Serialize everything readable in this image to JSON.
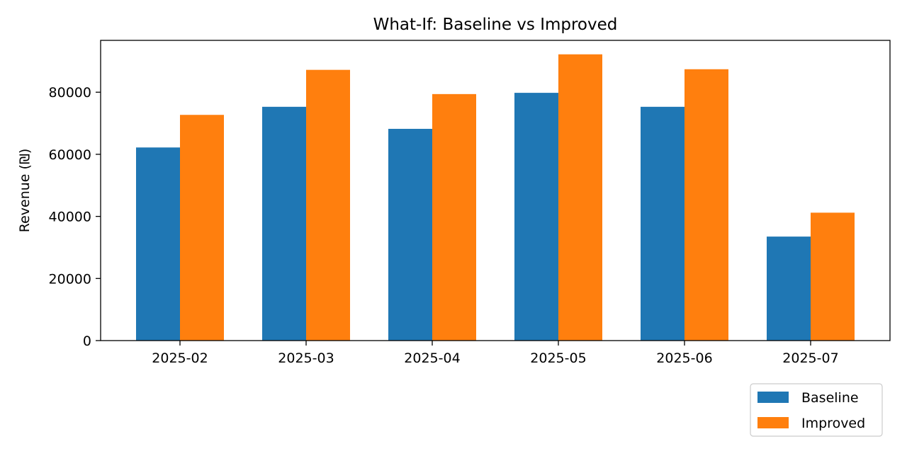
{
  "chart_data": {
    "type": "bar",
    "title": "What-If: Baseline vs Improved",
    "xlabel": "",
    "ylabel": "Revenue (₪)",
    "categories": [
      "2025-02",
      "2025-03",
      "2025-04",
      "2025-05",
      "2025-06",
      "2025-07"
    ],
    "series": [
      {
        "name": "Baseline",
        "color": "#1f77b4",
        "values": [
          62200,
          75300,
          68200,
          79800,
          75300,
          33500
        ]
      },
      {
        "name": "Improved",
        "color": "#ff7f0e",
        "values": [
          72700,
          87200,
          79400,
          92200,
          87400,
          41200
        ]
      }
    ],
    "ylim": [
      0,
      96700
    ],
    "yticks": [
      0,
      20000,
      40000,
      60000,
      80000
    ],
    "grid": false,
    "legend_position": "bottom-right-outside"
  }
}
